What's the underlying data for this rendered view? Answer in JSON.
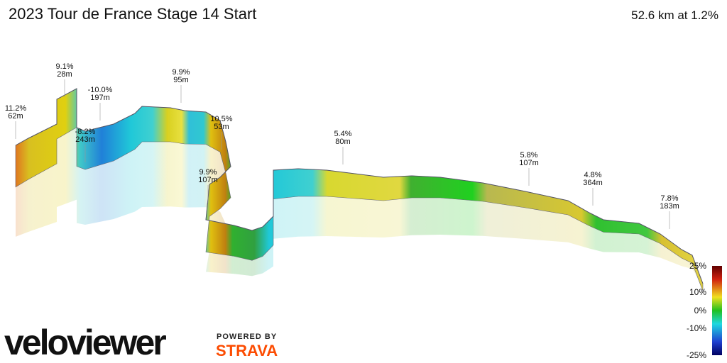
{
  "header": {
    "title": "2023 Tour de France Stage 14 Start",
    "summary": "52.6 km at 1.2%"
  },
  "annotations": [
    {
      "grade": "11.2%",
      "length": "62m"
    },
    {
      "grade": "9.1%",
      "length": "28m"
    },
    {
      "grade": "-10.0%",
      "length": "197m"
    },
    {
      "grade": "-8.2%",
      "length": "243m"
    },
    {
      "grade": "9.9%",
      "length": "95m"
    },
    {
      "grade": "10.5%",
      "length": "53m"
    },
    {
      "grade": "9.9%",
      "length": "107m"
    },
    {
      "grade": "5.4%",
      "length": "80m"
    },
    {
      "grade": "5.8%",
      "length": "107m"
    },
    {
      "grade": "4.8%",
      "length": "364m"
    },
    {
      "grade": "7.8%",
      "length": "183m"
    }
  ],
  "color_scale": {
    "labels": [
      "25%",
      "10%",
      "0%",
      "-10%",
      "-25%"
    ]
  },
  "branding": {
    "logo": "veloviewer",
    "powered_by": "POWERED BY",
    "partner": "STRAVA"
  }
}
